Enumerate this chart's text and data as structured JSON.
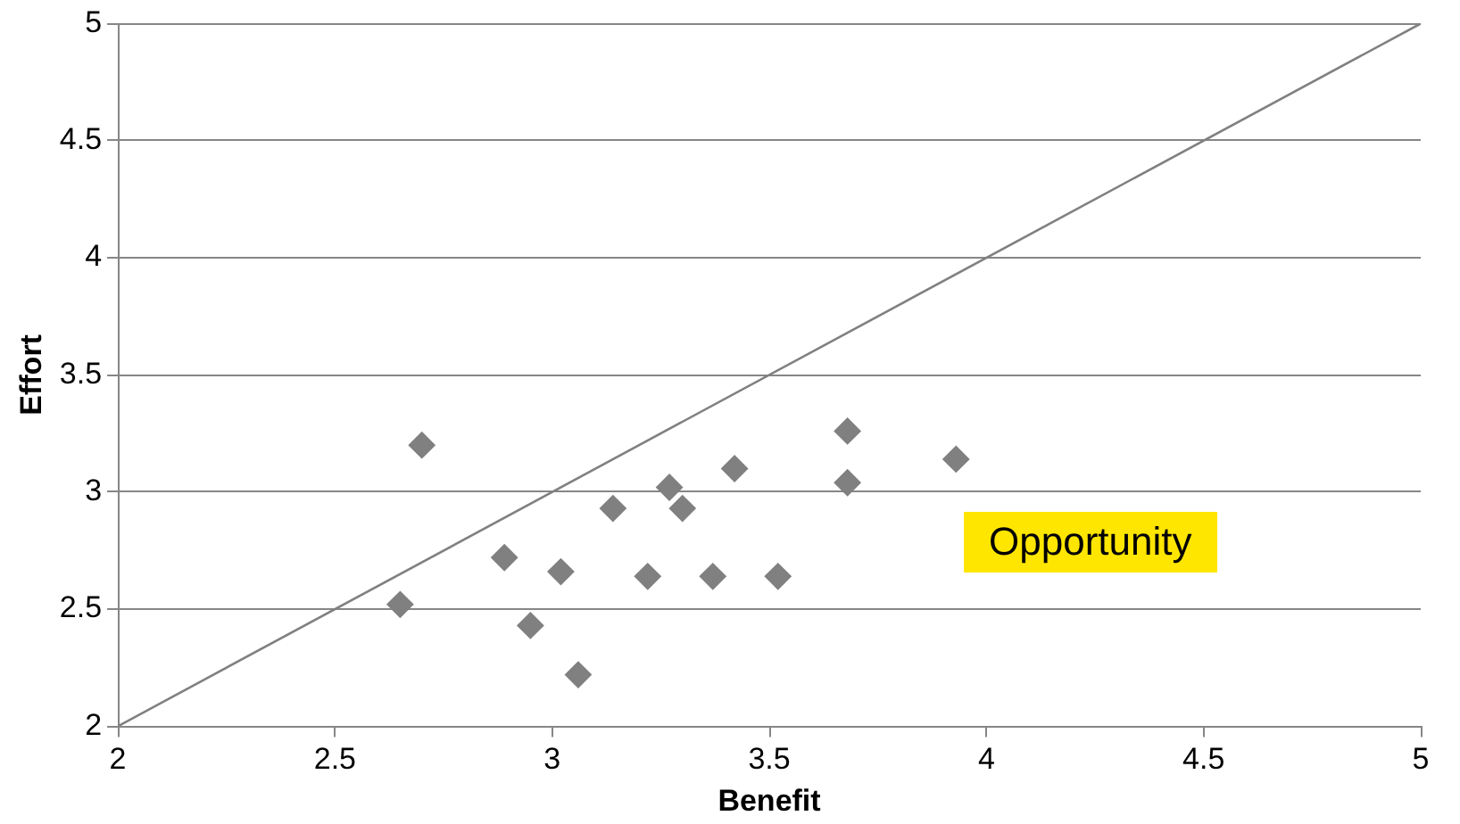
{
  "chart_data": {
    "type": "scatter",
    "xlabel": "Benefit",
    "ylabel": "Effort",
    "x": [
      2.65,
      2.7,
      2.89,
      2.95,
      3.02,
      3.06,
      3.14,
      3.22,
      3.27,
      3.3,
      3.37,
      3.42,
      3.52,
      3.68,
      3.68,
      3.93
    ],
    "series": [
      {
        "color": "#808080",
        "marker": "diamond",
        "values": [
          2.52,
          3.2,
          2.72,
          2.43,
          2.66,
          2.22,
          2.93,
          2.64,
          3.02,
          2.93,
          2.64,
          3.1,
          2.64,
          3.26,
          3.04,
          3.14
        ]
      },
      {
        "type": "line",
        "color": "#808080",
        "marker": "none",
        "line_style": "solid",
        "x": [
          2,
          5
        ],
        "values": [
          2,
          5
        ]
      }
    ],
    "xlim": [
      2,
      5
    ],
    "xticks": [
      2,
      2.5,
      3,
      3.5,
      4,
      4.5,
      5
    ],
    "ylim": [
      2,
      5
    ],
    "yticks": [
      2,
      2.5,
      3,
      3.5,
      4,
      4.5,
      5
    ],
    "grid": "y",
    "legend": false,
    "annotations": [
      "Opportunity"
    ]
  }
}
